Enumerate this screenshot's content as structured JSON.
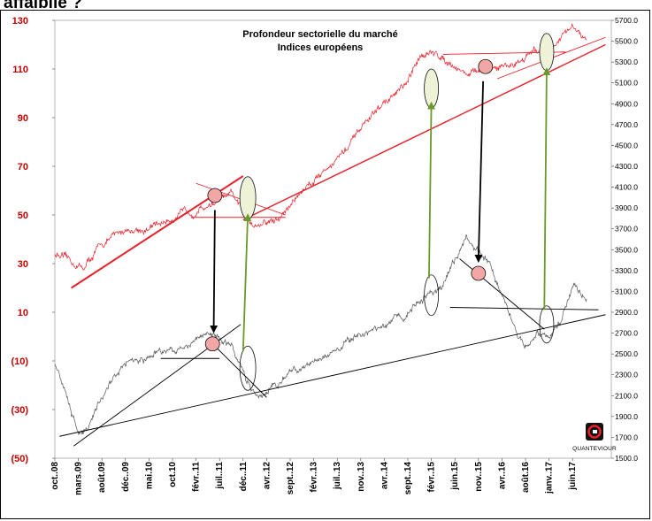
{
  "page": {
    "heading": "affaiblie ?"
  },
  "logo": {
    "text": "QUANTEVIOUR"
  },
  "chart_data": {
    "type": "line",
    "title": "Profondeur sectorielle du marché",
    "subtitle": "Indices européens",
    "left_axis": {
      "ylim": [
        -50,
        130
      ],
      "ticks": [
        130,
        110,
        90,
        70,
        50,
        30,
        10,
        -10,
        -30,
        -50
      ],
      "tick_labels": [
        "130",
        "110",
        "90",
        "70",
        "50",
        "30",
        "10",
        "(10)",
        "(30)",
        "(50)"
      ]
    },
    "right_axis": {
      "ylim": [
        1500,
        5700
      ],
      "ticks": [
        5700,
        5500,
        5300,
        5100,
        4900,
        4700,
        4500,
        4300,
        4100,
        3900,
        3700,
        3500,
        3300,
        3100,
        2900,
        2700,
        2500,
        2300,
        2100,
        1900,
        1700,
        1500
      ],
      "tick_labels": [
        "5700.0",
        "5500.0",
        "5300.0",
        "5100.0",
        "4900.0",
        "4700.0",
        "4500.0",
        "4300.0",
        "4100.0",
        "3900.0",
        "3700.0",
        "3500.0",
        "3300.0",
        "3100.0",
        "2900.0",
        "2700.0",
        "2500.0",
        "2300.0",
        "2100.0",
        "1900.0",
        "1700.0",
        "1500.0"
      ]
    },
    "x_axis": {
      "tick_labels": [
        "oct..08",
        "mars.09",
        "août.09",
        "déc..09",
        "mai.10",
        "oct.10",
        "févr..11",
        "juil..11",
        "déc..11",
        "avr..12",
        "sept..12",
        "févr..13",
        "juil..13",
        "nov..13",
        "avr..14",
        "sept..14",
        "févr..15",
        "juin.15",
        "nov..15",
        "avr..16",
        "août.16",
        "janv..17",
        "juin.17"
      ]
    },
    "colors": {
      "breadth": "#e8202a",
      "index": "#555555",
      "trend_red": "#e8202a",
      "trend_black": "#000000",
      "green_arrow": "#6a9a2a",
      "black_arrow": "#000000",
      "red_circle_fill": "#f3a6a6",
      "green_ellipse_fill": "#eef3d8"
    },
    "series": [
      {
        "axis": "left",
        "color": "#e8202a",
        "x": [
          0,
          0.8,
          1.2,
          2,
          3,
          4,
          5,
          6,
          7.5,
          8.5,
          9.5,
          10.5,
          11.5,
          12.5,
          13.2,
          14,
          15,
          15.6,
          16.5,
          17.5,
          18.5,
          19.5,
          20.1,
          21,
          22,
          22.6
        ],
        "y": [
          34,
          30,
          28,
          38,
          44,
          44,
          49,
          52,
          58,
          46,
          48,
          60,
          69,
          78,
          88,
          96,
          104,
          117,
          115,
          108,
          110,
          112,
          116,
          118,
          127,
          121
        ]
      },
      {
        "axis": "left",
        "color": "#555555",
        "x": [
          0,
          0.5,
          1,
          1.2,
          2,
          3,
          4,
          5,
          6,
          6.5,
          7,
          7.5,
          8,
          8.5,
          9.5,
          10,
          11,
          12,
          13,
          14,
          15,
          16,
          16.5,
          17,
          17.5,
          18.5,
          19.5,
          20,
          20.5,
          21,
          21.5,
          22,
          22.6
        ],
        "y": [
          -10,
          -25,
          -40,
          -40,
          -25,
          -10,
          -8,
          -5,
          -2,
          2,
          0,
          -4,
          -15,
          -25,
          -20,
          -15,
          -10,
          -5,
          0,
          5,
          10,
          18,
          20,
          32,
          40,
          30,
          5,
          -5,
          2,
          0,
          5,
          22,
          15
        ]
      }
    ]
  }
}
